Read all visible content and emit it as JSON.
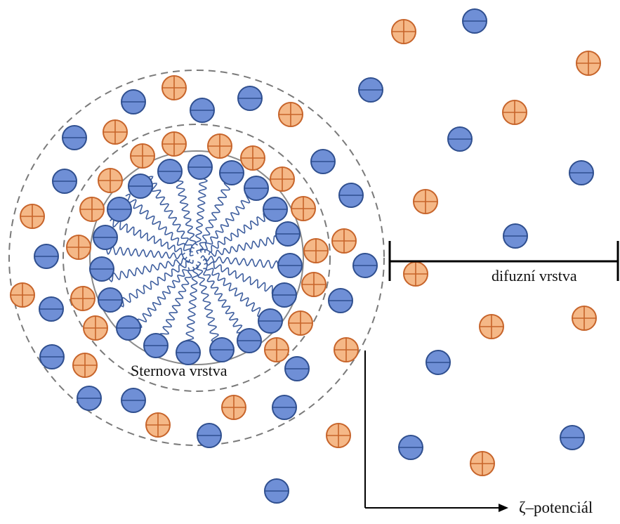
{
  "labels": {
    "stern_layer": "Sternova vrstva",
    "diffuse_layer": "difuzní vrstva",
    "zeta_potential": "ζ–potenciál"
  },
  "colors": {
    "negative_ion_fill": "#6f8fd6",
    "negative_ion_stroke": "#2f4f8f",
    "positive_ion_fill": "#f5b887",
    "positive_ion_stroke": "#c7642a",
    "micelle_chain": "#3f5f9f",
    "dashed_circle": "#7a7a7a",
    "bracket_line": "#000000"
  },
  "icons": {
    "negative_ion": "minus-in-circle",
    "positive_ion": "plus-in-circle"
  }
}
